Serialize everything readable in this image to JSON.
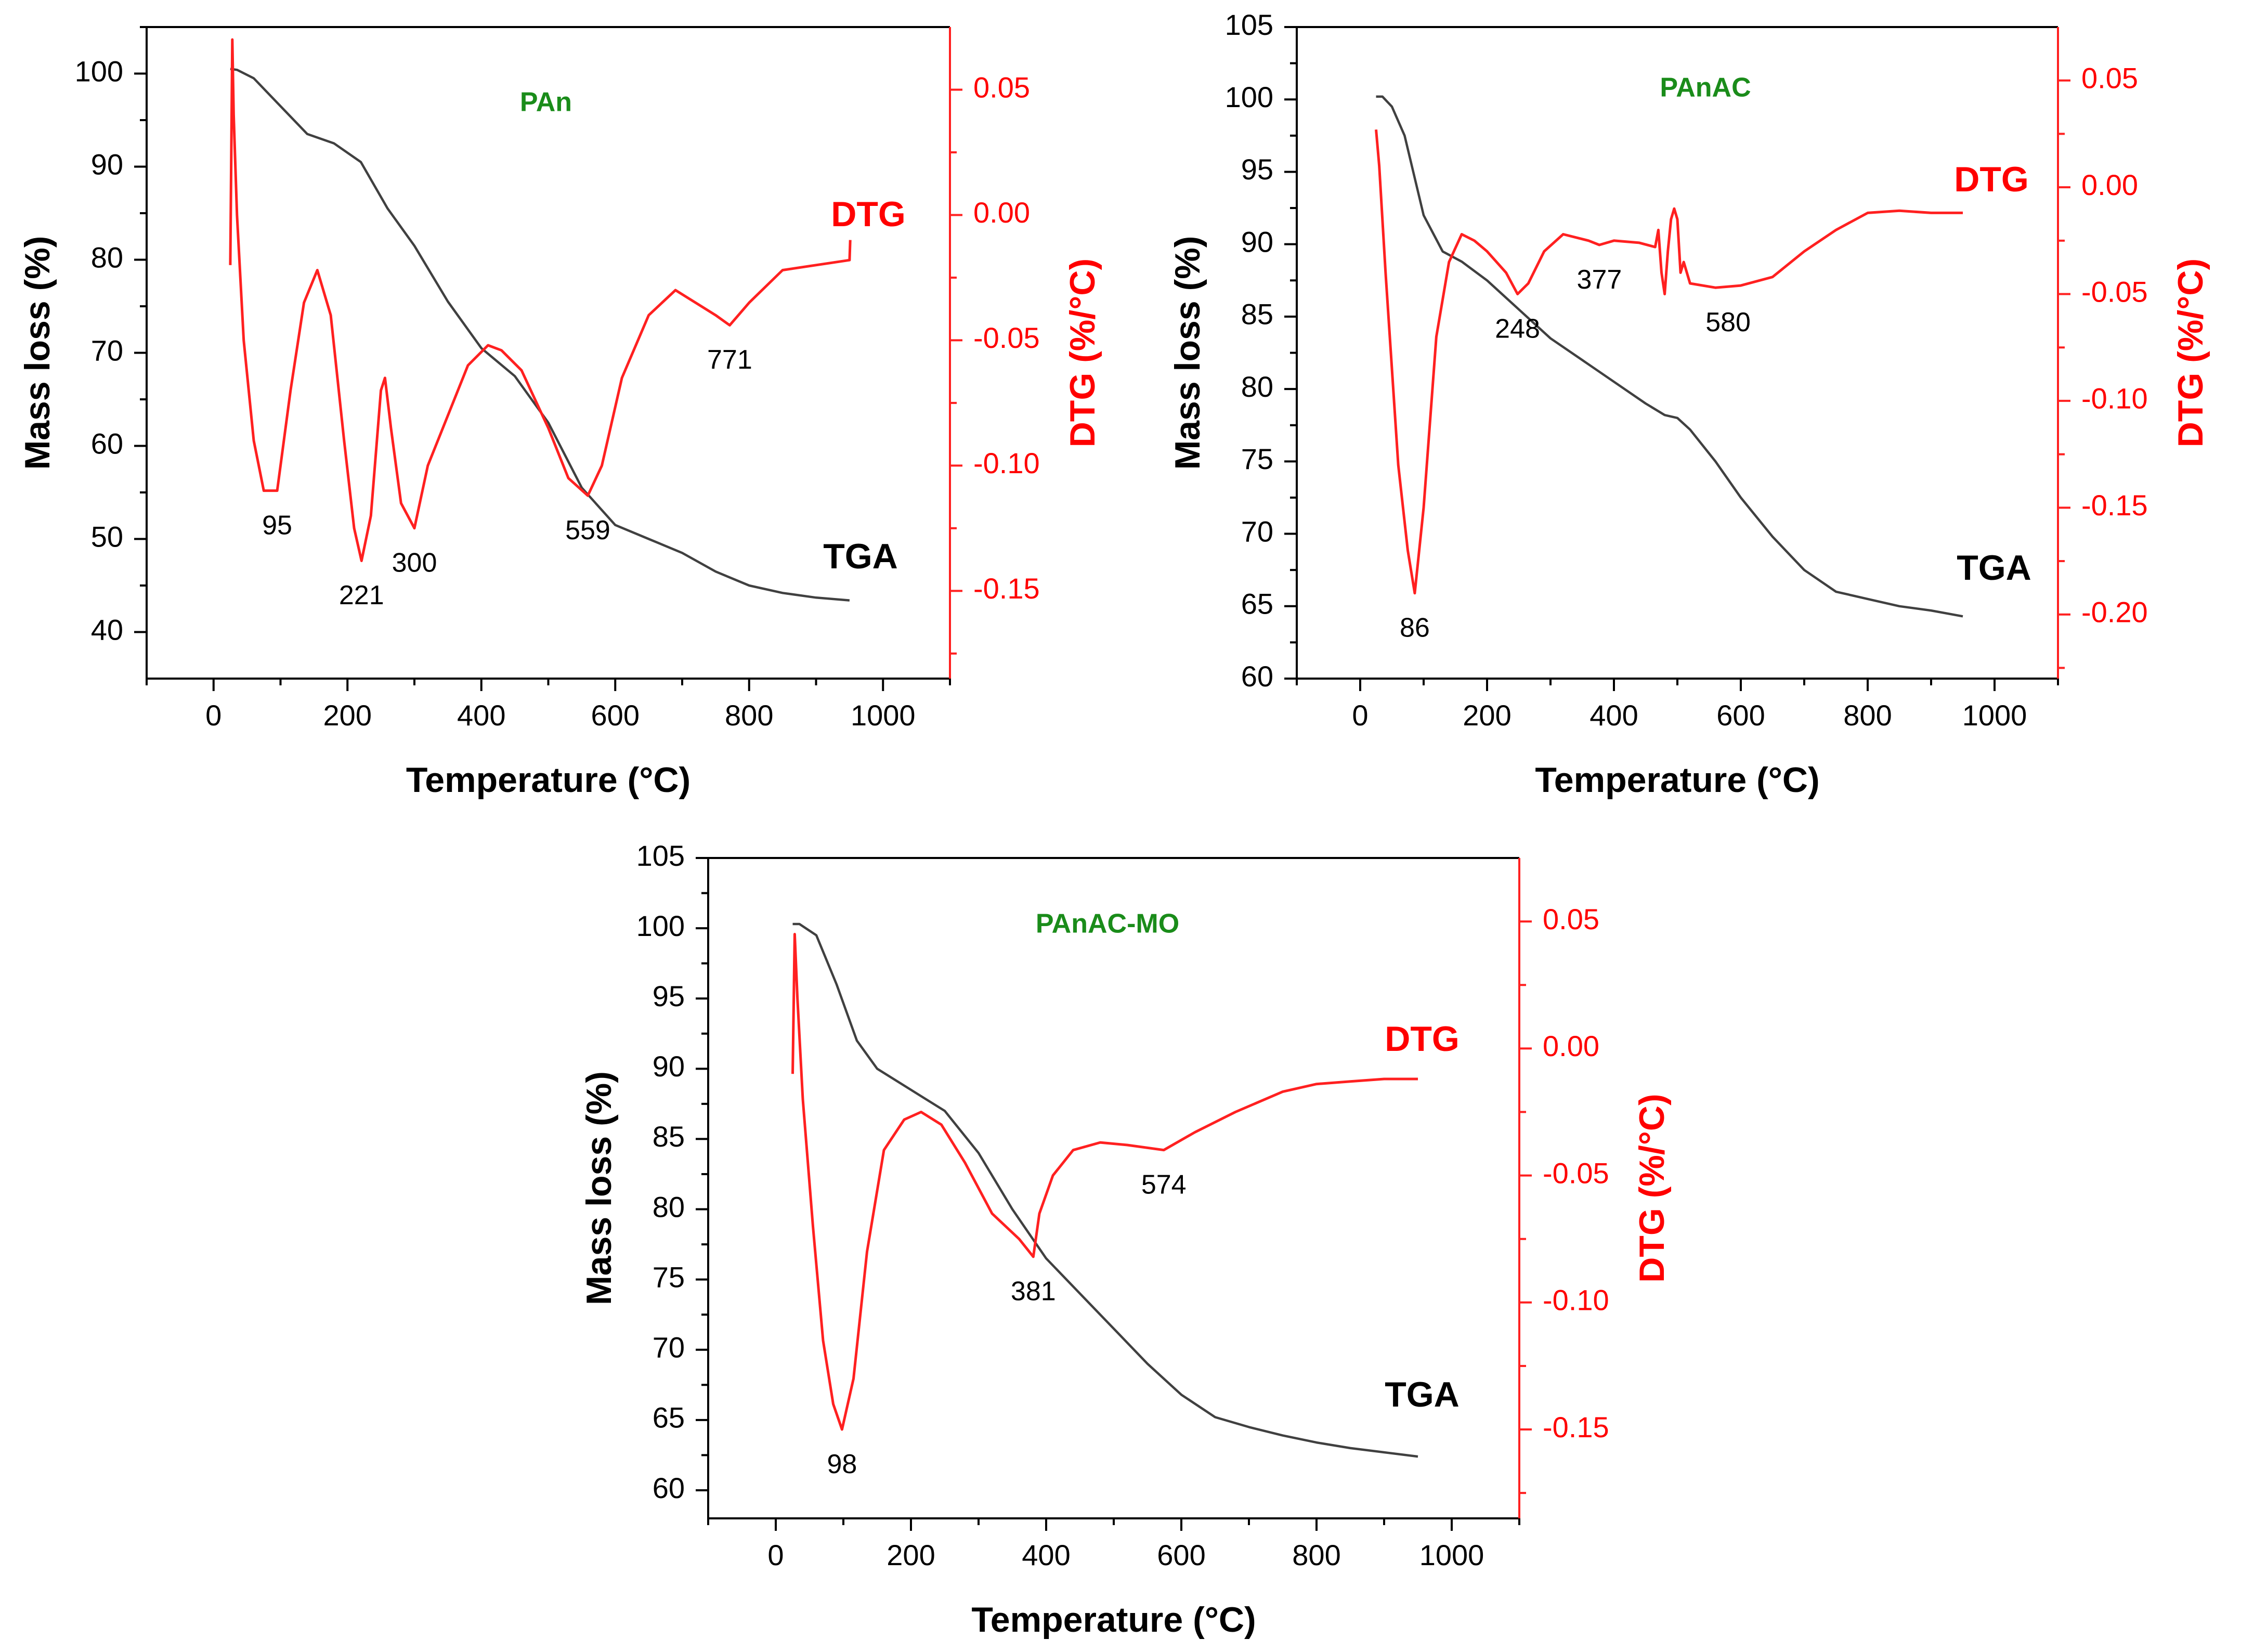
{
  "colors": {
    "tga": "#404040",
    "dtg": "#ff2020",
    "right_axis": "#ff2020",
    "panel_title": "#1a8c1a",
    "axis": "#000000"
  },
  "chart_data": [
    {
      "type": "line",
      "title": "PAn",
      "xlabel": "Temperature (°C)",
      "ylabel": "Mass loss (%)",
      "y2label": "DTG (%/°C)",
      "xlim": [
        -100,
        1100
      ],
      "ylim": [
        35,
        105
      ],
      "y2lim": [
        -0.185,
        0.075
      ],
      "xticks": [
        0,
        200,
        400,
        600,
        800,
        1000
      ],
      "yticks": [
        40,
        50,
        60,
        70,
        80,
        90,
        100
      ],
      "y2ticks": [
        0.05,
        0.0,
        -0.05,
        -0.1,
        -0.15
      ],
      "series_label_tga": "TGA",
      "series_label_dtg": "DTG",
      "tga": {
        "x": [
          25,
          35,
          60,
          100,
          140,
          180,
          220,
          260,
          300,
          350,
          400,
          450,
          500,
          550,
          600,
          650,
          700,
          750,
          800,
          850,
          900,
          950
        ],
        "y": [
          100.5,
          100.4,
          99.5,
          96.5,
          93.5,
          92.5,
          90.5,
          85.5,
          81.5,
          75.5,
          70.5,
          67.5,
          62.5,
          55.5,
          51.5,
          50,
          48.5,
          46.5,
          45,
          44.2,
          43.7,
          43.4
        ]
      },
      "dtg": {
        "x": [
          25,
          28,
          30,
          35,
          45,
          60,
          75,
          95,
          115,
          135,
          155,
          175,
          195,
          210,
          221,
          235,
          250,
          256,
          265,
          280,
          300,
          320,
          350,
          380,
          410,
          430,
          460,
          500,
          530,
          559,
          580,
          610,
          650,
          690,
          720,
          750,
          771,
          800,
          850,
          900,
          950,
          951
        ],
        "y": [
          -0.02,
          0.07,
          0.04,
          0.0,
          -0.05,
          -0.09,
          -0.11,
          -0.11,
          -0.07,
          -0.035,
          -0.022,
          -0.04,
          -0.09,
          -0.125,
          -0.138,
          -0.12,
          -0.07,
          -0.065,
          -0.085,
          -0.115,
          -0.125,
          -0.1,
          -0.08,
          -0.06,
          -0.052,
          -0.054,
          -0.062,
          -0.085,
          -0.105,
          -0.112,
          -0.1,
          -0.065,
          -0.04,
          -0.03,
          -0.035,
          -0.04,
          -0.044,
          -0.035,
          -0.022,
          -0.02,
          -0.018,
          -0.01
        ]
      },
      "peaks": [
        {
          "label": "95",
          "x": 95,
          "y": -0.11
        },
        {
          "label": "221",
          "x": 221,
          "y": -0.138
        },
        {
          "label": "300",
          "x": 300,
          "y": -0.125
        },
        {
          "label": "559",
          "x": 559,
          "y": -0.112
        },
        {
          "label": "771",
          "x": 771,
          "y": -0.044
        }
      ]
    },
    {
      "type": "line",
      "title": "PAnAC",
      "xlabel": "Temperature (°C)",
      "ylabel": "Mass loss (%)",
      "y2label": "DTG (%/°C)",
      "xlim": [
        -100,
        1100
      ],
      "ylim": [
        60,
        105
      ],
      "y2lim": [
        -0.23,
        0.075
      ],
      "xticks": [
        0,
        200,
        400,
        600,
        800,
        1000
      ],
      "yticks": [
        60,
        65,
        70,
        75,
        80,
        85,
        90,
        95,
        100,
        105
      ],
      "y2ticks": [
        0.05,
        0.0,
        -0.05,
        -0.1,
        -0.15,
        -0.2
      ],
      "series_label_tga": "TGA",
      "series_label_dtg": "DTG",
      "tga": {
        "x": [
          25,
          35,
          50,
          70,
          100,
          130,
          160,
          200,
          250,
          300,
          350,
          400,
          450,
          480,
          500,
          520,
          560,
          600,
          650,
          700,
          750,
          800,
          850,
          900,
          950
        ],
        "y": [
          100.2,
          100.2,
          99.5,
          97.5,
          92,
          89.5,
          88.8,
          87.5,
          85.5,
          83.5,
          82,
          80.5,
          79,
          78.2,
          78,
          77.2,
          75,
          72.5,
          69.8,
          67.5,
          66,
          65.5,
          65,
          64.7,
          64.3
        ]
      },
      "dtg": {
        "x": [
          25,
          30,
          40,
          60,
          75,
          86,
          100,
          120,
          140,
          160,
          180,
          200,
          230,
          248,
          265,
          290,
          320,
          360,
          377,
          400,
          440,
          465,
          470,
          475,
          480,
          485,
          490,
          495,
          500,
          505,
          510,
          520,
          560,
          600,
          650,
          700,
          750,
          800,
          850,
          900,
          950
        ],
        "y": [
          0.027,
          0.01,
          -0.04,
          -0.13,
          -0.17,
          -0.19,
          -0.15,
          -0.07,
          -0.035,
          -0.022,
          -0.025,
          -0.03,
          -0.04,
          -0.05,
          -0.045,
          -0.03,
          -0.022,
          -0.025,
          -0.027,
          -0.025,
          -0.026,
          -0.028,
          -0.02,
          -0.04,
          -0.05,
          -0.03,
          -0.015,
          -0.01,
          -0.015,
          -0.04,
          -0.035,
          -0.045,
          -0.047,
          -0.046,
          -0.042,
          -0.03,
          -0.02,
          -0.012,
          -0.011,
          -0.012,
          -0.012
        ]
      },
      "peaks": [
        {
          "label": "86",
          "x": 86,
          "y": -0.19
        },
        {
          "label": "248",
          "x": 248,
          "y": -0.05
        },
        {
          "label": "377",
          "x": 377,
          "y": -0.027
        },
        {
          "label": "580",
          "x": 580,
          "y": -0.047
        }
      ]
    },
    {
      "type": "line",
      "title": "PAnAC-MO",
      "xlabel": "Temperature (°C)",
      "ylabel": "Mass loss (%)",
      "y2label": "DTG (%/°C)",
      "xlim": [
        -100,
        1100
      ],
      "ylim": [
        58,
        105
      ],
      "y2lim": [
        -0.185,
        0.075
      ],
      "xticks": [
        0,
        200,
        400,
        600,
        800,
        1000
      ],
      "yticks": [
        60,
        65,
        70,
        75,
        80,
        85,
        90,
        95,
        100,
        105
      ],
      "y2ticks": [
        0.05,
        0.0,
        -0.05,
        -0.1,
        -0.15
      ],
      "series_label_tga": "TGA",
      "series_label_dtg": "DTG",
      "tga": {
        "x": [
          25,
          35,
          60,
          90,
          120,
          150,
          200,
          250,
          300,
          350,
          400,
          450,
          500,
          550,
          600,
          650,
          700,
          750,
          800,
          850,
          900,
          950
        ],
        "y": [
          100.3,
          100.3,
          99.5,
          96,
          92,
          90,
          88.5,
          87,
          84,
          80,
          76.5,
          74,
          71.5,
          69,
          66.8,
          65.2,
          64.5,
          63.9,
          63.4,
          63,
          62.7,
          62.4
        ]
      },
      "dtg": {
        "x": [
          25,
          28,
          32,
          40,
          55,
          70,
          85,
          98,
          115,
          135,
          160,
          190,
          215,
          245,
          280,
          320,
          360,
          381,
          390,
          410,
          440,
          480,
          520,
          574,
          620,
          680,
          750,
          800,
          850,
          900,
          950
        ],
        "y": [
          -0.01,
          0.045,
          0.02,
          -0.02,
          -0.07,
          -0.115,
          -0.14,
          -0.15,
          -0.13,
          -0.08,
          -0.04,
          -0.028,
          -0.025,
          -0.03,
          -0.045,
          -0.065,
          -0.075,
          -0.082,
          -0.065,
          -0.05,
          -0.04,
          -0.037,
          -0.038,
          -0.04,
          -0.033,
          -0.025,
          -0.017,
          -0.014,
          -0.013,
          -0.012,
          -0.012
        ]
      },
      "peaks": [
        {
          "label": "98",
          "x": 98,
          "y": -0.15
        },
        {
          "label": "381",
          "x": 381,
          "y": -0.082
        },
        {
          "label": "574",
          "x": 574,
          "y": -0.04
        }
      ]
    }
  ]
}
